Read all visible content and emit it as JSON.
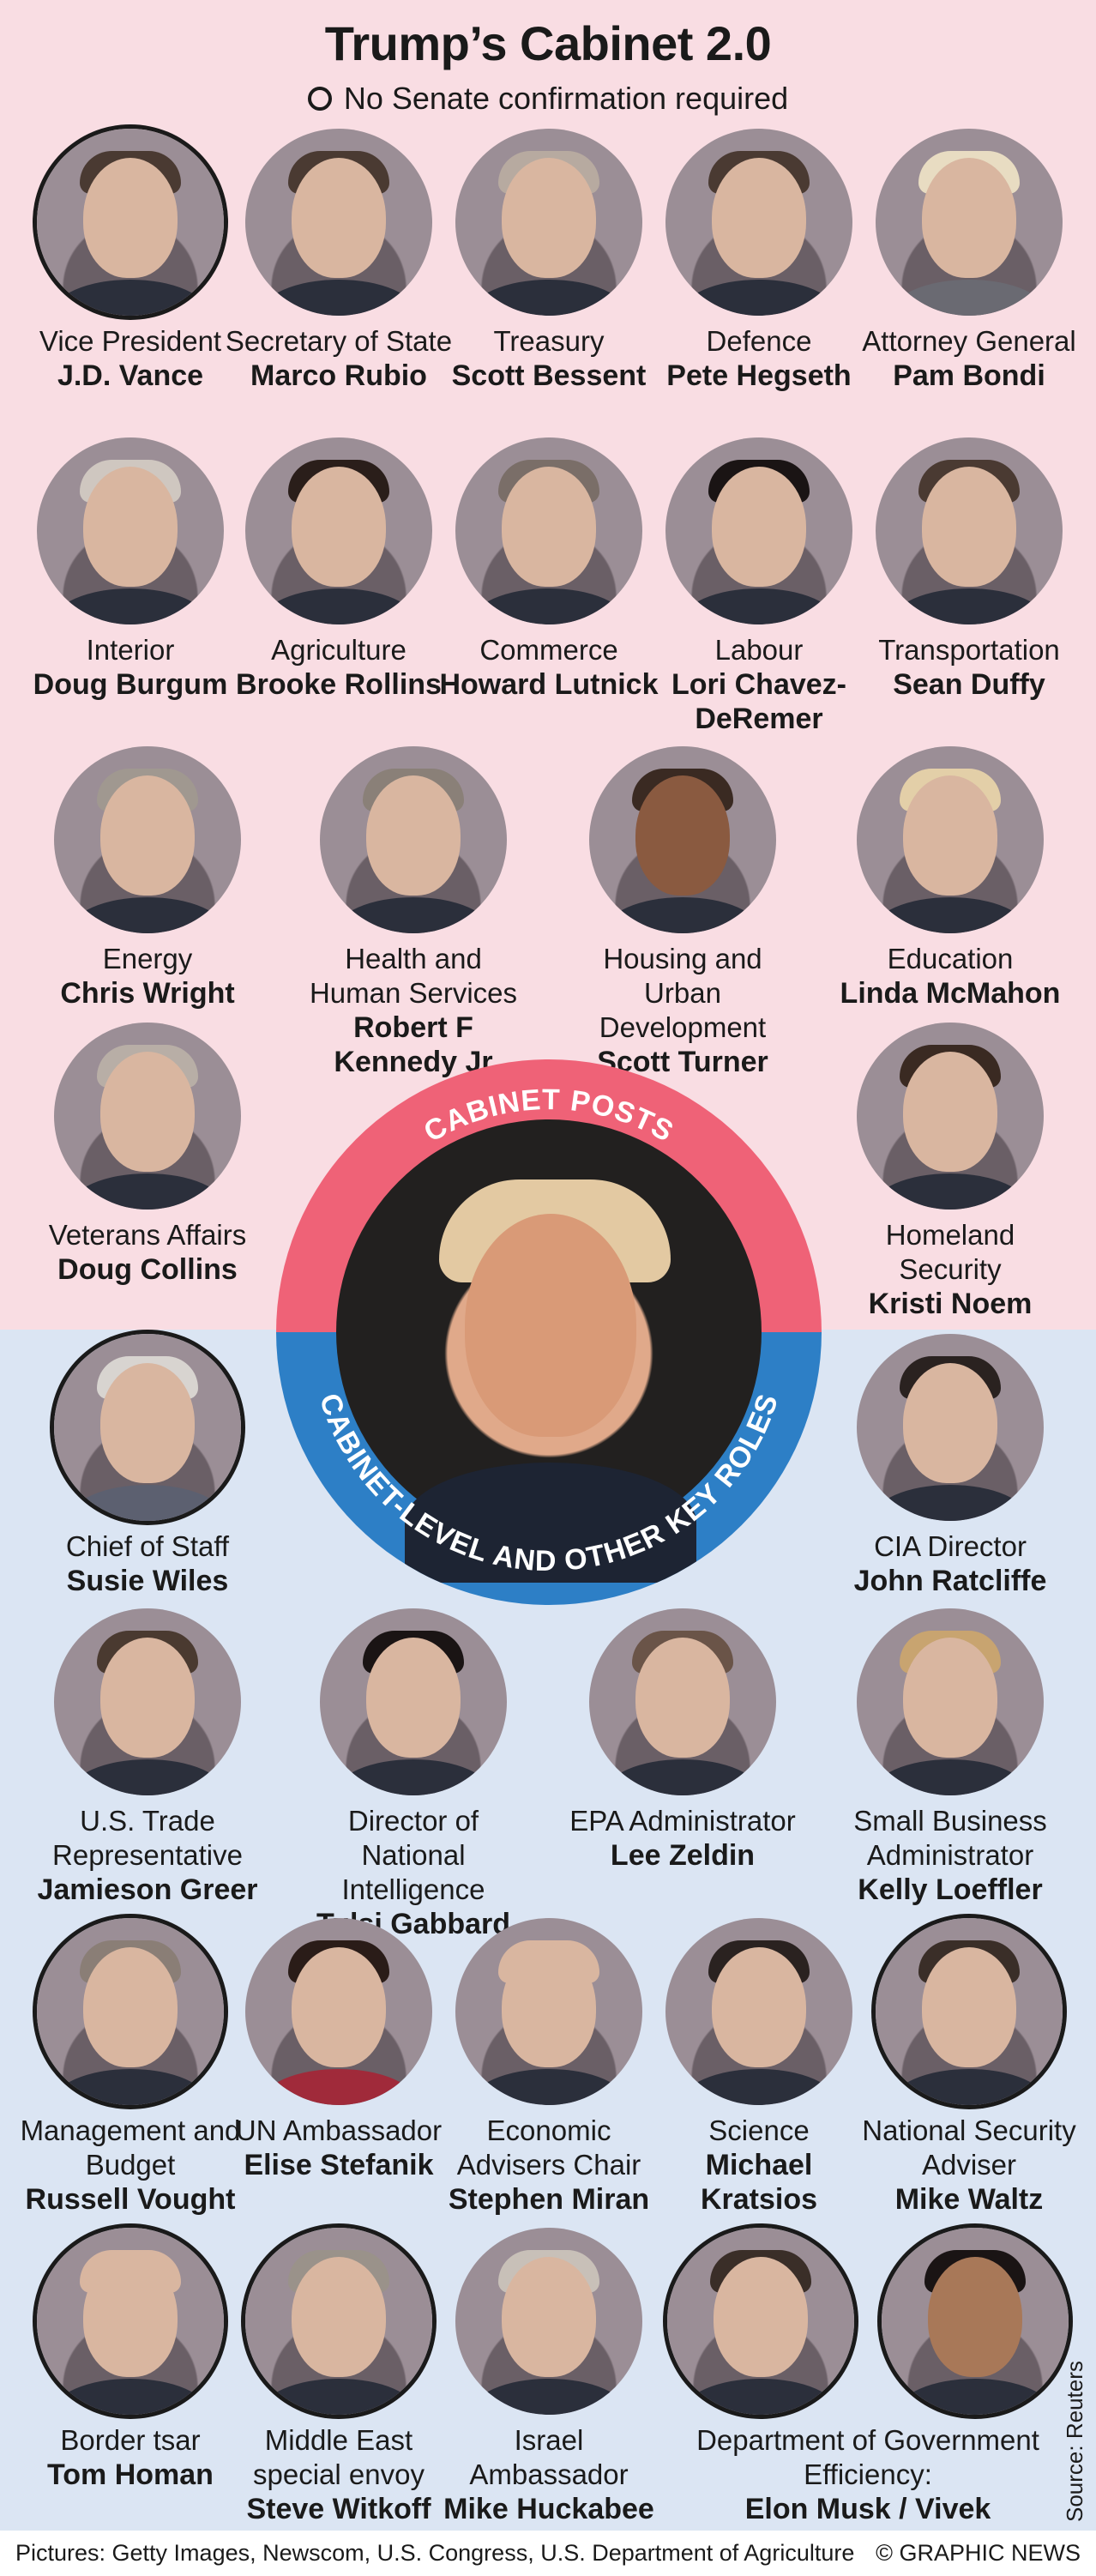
{
  "title": "Trump’s Cabinet 2.0",
  "legend": "No Senate confirmation required",
  "center": {
    "top_label": "CABINET POSTS",
    "bottom_label": "CABINET-LEVEL AND OTHER KEY ROLES"
  },
  "cabinet_posts": [
    {
      "role": "Vice President",
      "name": "J.D. Vance",
      "no_confirmation": true
    },
    {
      "role": "Secretary of State",
      "name": "Marco Rubio",
      "no_confirmation": false
    },
    {
      "role": "Treasury",
      "name": "Scott Bessent",
      "no_confirmation": false
    },
    {
      "role": "Defence",
      "name": "Pete Hegseth",
      "no_confirmation": false
    },
    {
      "role": "Attorney General",
      "name": "Pam Bondi",
      "no_confirmation": false
    },
    {
      "role": "Interior",
      "name": "Doug Burgum",
      "no_confirmation": false
    },
    {
      "role": "Agriculture",
      "name": "Brooke Rollins",
      "no_confirmation": false
    },
    {
      "role": "Commerce",
      "name": "Howard Lutnick",
      "no_confirmation": false
    },
    {
      "role": "Labour",
      "name": "Lori Chavez-DeRemer",
      "no_confirmation": false
    },
    {
      "role": "Transportation",
      "name": "Sean Duffy",
      "no_confirmation": false
    },
    {
      "role": "Energy",
      "name": "Chris Wright",
      "no_confirmation": false
    },
    {
      "role": "Health and Human Services",
      "name": "Robert F Kennedy Jr",
      "no_confirmation": false
    },
    {
      "role": "Housing and Urban Development",
      "name": "Scott Turner",
      "no_confirmation": false
    },
    {
      "role": "Education",
      "name": "Linda McMahon",
      "no_confirmation": false
    },
    {
      "role": "Veterans Affairs",
      "name": "Doug Collins",
      "no_confirmation": false
    },
    {
      "role": "Homeland Security",
      "name": "Kristi Noem",
      "no_confirmation": false
    }
  ],
  "key_roles": [
    {
      "role": "Chief of Staff",
      "name": "Susie Wiles",
      "no_confirmation": true
    },
    {
      "role": "CIA Director",
      "name": "John Ratcliffe",
      "no_confirmation": false
    },
    {
      "role": "U.S. Trade Representative",
      "name": "Jamieson Greer",
      "no_confirmation": false
    },
    {
      "role": "Director of National Intelligence",
      "name": "Tulsi Gabbard",
      "no_confirmation": false
    },
    {
      "role": "EPA Administrator",
      "name": "Lee Zeldin",
      "no_confirmation": false
    },
    {
      "role": "Small Business Administrator",
      "name": "Kelly Loeffler",
      "no_confirmation": false
    },
    {
      "role": "Management and Budget",
      "name": "Russell Vought",
      "no_confirmation": true
    },
    {
      "role": "UN Ambassador",
      "name": "Elise Stefanik",
      "no_confirmation": false
    },
    {
      "role": "Economic Advisers Chair",
      "name": "Stephen Miran",
      "no_confirmation": false
    },
    {
      "role": "Science",
      "name": "Michael Kratsios",
      "no_confirmation": false
    },
    {
      "role": "National Security Adviser",
      "name": "Mike Waltz",
      "no_confirmation": true
    },
    {
      "role": "Border tsar",
      "name": "Tom Homan",
      "no_confirmation": true
    },
    {
      "role": "Middle East special envoy",
      "name": "Steve Witkoff",
      "no_confirmation": true
    },
    {
      "role": "Israel Ambassador",
      "name": "Mike Huckabee",
      "no_confirmation": false
    },
    {
      "role": "Department of Government Efficiency:",
      "name": "Elon Musk / Vivek Ramaswamy",
      "no_confirmation": true
    }
  ],
  "footer": {
    "pictures": "Pictures: Getty Images, Newscom, U.S. Congress, U.S. Department of Agriculture",
    "copyright": "© GRAPHIC NEWS"
  },
  "source": "Source: Reuters",
  "colors": {
    "top_background": "#f9dde3",
    "bottom_background": "#dbe5f3",
    "cabinet_ring": "#ef6277",
    "key_roles_ring": "#2d7fc6"
  }
}
